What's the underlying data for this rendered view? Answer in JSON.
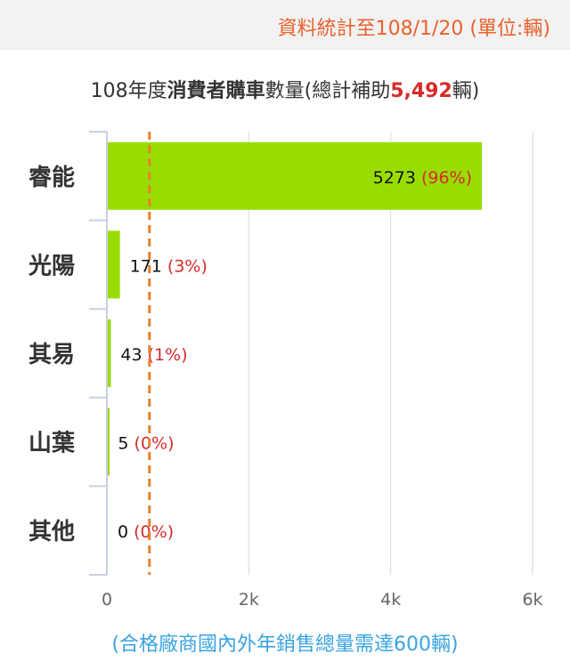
{
  "header": {
    "source_note": "資料統計至108/1/20 (單位:輛)"
  },
  "title": {
    "prefix": "108年度",
    "bold": "消費者購車",
    "middle": "數量(總計補助",
    "total": "5,492",
    "suffix": "輛)"
  },
  "footnote": "(合格廠商國內外年銷售總量需達600輛)",
  "colors": {
    "bar": "#99dd00",
    "threshold": "#e8812c",
    "percent": "#d62b2b",
    "grid": "#e3e3e3",
    "axis": "#c8cfe0",
    "footnote": "#3aa3e0",
    "source_note": "#e8612c"
  },
  "chart_data": {
    "type": "bar",
    "orientation": "horizontal",
    "categories": [
      "睿能",
      "光陽",
      "其易",
      "山葉",
      "其他"
    ],
    "values": [
      5273,
      171,
      43,
      5,
      0
    ],
    "value_labels": [
      "5273",
      "171",
      "43",
      "5",
      "0"
    ],
    "percent_labels": [
      "(96%)",
      "(3%)",
      "(1%)",
      "(0%)",
      "(0%)"
    ],
    "xlim": [
      0,
      6000
    ],
    "x_ticks": [
      0,
      2000,
      4000,
      6000
    ],
    "x_tick_labels": [
      "0",
      "2k",
      "4k",
      "6k"
    ],
    "threshold": 600,
    "grid": true
  }
}
